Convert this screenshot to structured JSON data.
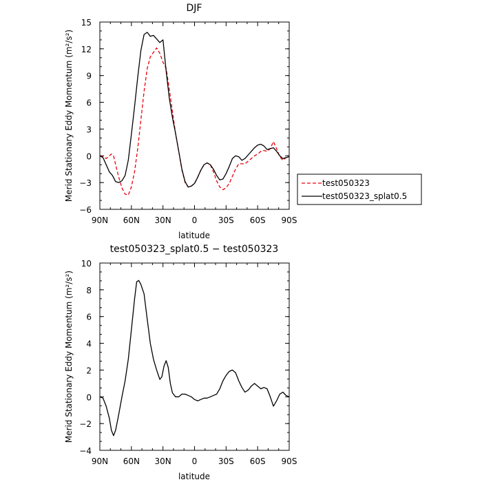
{
  "chart_data": [
    {
      "type": "line",
      "title": "DJF",
      "xlabel": "latitude",
      "ylabel": "Merid Stationary Eddy Momentum (m²/s²)",
      "xlim": [
        90,
        -90
      ],
      "ylim": [
        -6,
        15
      ],
      "x_ticks": [
        90,
        60,
        30,
        0,
        -30,
        -60,
        -90
      ],
      "x_tick_labels": [
        "90N",
        "60N",
        "30N",
        "0",
        "30S",
        "60S",
        "90S"
      ],
      "y_ticks": [
        -6,
        -3,
        0,
        3,
        6,
        9,
        12,
        15
      ],
      "y_tick_labels": [
        "−6",
        "−3",
        "0",
        "3",
        "6",
        "9",
        "12",
        "15"
      ],
      "legend": "right",
      "series": [
        {
          "name": "test050323",
          "color": "#e8000b",
          "dash": "dashed",
          "points": [
            [
              90,
              0
            ],
            [
              87,
              -0.1
            ],
            [
              84,
              -0.3
            ],
            [
              81,
              0
            ],
            [
              79,
              0.2
            ],
            [
              77,
              0
            ],
            [
              75,
              -1
            ],
            [
              72,
              -2.4
            ],
            [
              69,
              -3.6
            ],
            [
              66,
              -4.3
            ],
            [
              63,
              -4.4
            ],
            [
              60,
              -3.5
            ],
            [
              57,
              -1.8
            ],
            [
              54,
              0.8
            ],
            [
              51,
              4
            ],
            [
              48,
              7.2
            ],
            [
              45,
              9.8
            ],
            [
              42,
              11.1
            ],
            [
              39,
              11.6
            ],
            [
              36,
              12.1
            ],
            [
              33,
              11.5
            ],
            [
              30,
              10.5
            ],
            [
              27,
              9.8
            ],
            [
              24,
              7.5
            ],
            [
              21,
              5
            ],
            [
              18,
              2.5
            ],
            [
              15,
              0.5
            ],
            [
              12,
              -1.6
            ],
            [
              9,
              -3
            ],
            [
              6,
              -3.5
            ],
            [
              3,
              -3.4
            ],
            [
              0,
              -3.1
            ],
            [
              -3,
              -2.4
            ],
            [
              -6,
              -1.6
            ],
            [
              -9,
              -1
            ],
            [
              -12,
              -0.8
            ],
            [
              -15,
              -1
            ],
            [
              -18,
              -1.8
            ],
            [
              -21,
              -2.8
            ],
            [
              -24,
              -3.5
            ],
            [
              -27,
              -3.8
            ],
            [
              -30,
              -3.6
            ],
            [
              -33,
              -3.1
            ],
            [
              -36,
              -2.3
            ],
            [
              -39,
              -1.5
            ],
            [
              -42,
              -0.9
            ],
            [
              -45,
              -0.9
            ],
            [
              -48,
              -0.9
            ],
            [
              -51,
              -0.6
            ],
            [
              -54,
              -0.3
            ],
            [
              -57,
              0
            ],
            [
              -60,
              0.2
            ],
            [
              -63,
              0.5
            ],
            [
              -66,
              0.6
            ],
            [
              -69,
              0.5
            ],
            [
              -72,
              0.8
            ],
            [
              -75,
              1.6
            ],
            [
              -78,
              0.8
            ],
            [
              -81,
              -0.1
            ],
            [
              -84,
              -0.5
            ],
            [
              -87,
              -0.2
            ],
            [
              -90,
              -0.2
            ]
          ]
        },
        {
          "name": "test050323_splat0.5",
          "color": "#000000",
          "dash": "solid",
          "points": [
            [
              90,
              0
            ],
            [
              87,
              -0.2
            ],
            [
              84,
              -1
            ],
            [
              81,
              -1.8
            ],
            [
              78,
              -2.2
            ],
            [
              75,
              -2.9
            ],
            [
              72,
              -3
            ],
            [
              69,
              -2.8
            ],
            [
              66,
              -2.2
            ],
            [
              63,
              -0.5
            ],
            [
              60,
              2.4
            ],
            [
              57,
              5.5
            ],
            [
              54,
              8.8
            ],
            [
              51,
              11.8
            ],
            [
              48,
              13.6
            ],
            [
              45,
              13.85
            ],
            [
              42,
              13.4
            ],
            [
              39,
              13.5
            ],
            [
              36,
              13.1
            ],
            [
              33,
              12.7
            ],
            [
              30,
              13
            ],
            [
              27,
              9.5
            ],
            [
              24,
              6.5
            ],
            [
              21,
              4.3
            ],
            [
              18,
              2.5
            ],
            [
              15,
              0.5
            ],
            [
              12,
              -1.5
            ],
            [
              9,
              -2.9
            ],
            [
              6,
              -3.5
            ],
            [
              3,
              -3.4
            ],
            [
              0,
              -3.1
            ],
            [
              -3,
              -2.4
            ],
            [
              -6,
              -1.6
            ],
            [
              -9,
              -1
            ],
            [
              -12,
              -0.8
            ],
            [
              -15,
              -1
            ],
            [
              -18,
              -1.5
            ],
            [
              -21,
              -2.2
            ],
            [
              -24,
              -2.7
            ],
            [
              -27,
              -2.6
            ],
            [
              -30,
              -2
            ],
            [
              -33,
              -1.2
            ],
            [
              -36,
              -0.3
            ],
            [
              -39,
              0
            ],
            [
              -42,
              -0.1
            ],
            [
              -45,
              -0.5
            ],
            [
              -48,
              -0.3
            ],
            [
              -51,
              0.1
            ],
            [
              -54,
              0.5
            ],
            [
              -57,
              0.9
            ],
            [
              -60,
              1.2
            ],
            [
              -63,
              1.3
            ],
            [
              -66,
              1.1
            ],
            [
              -69,
              0.7
            ],
            [
              -72,
              0.8
            ],
            [
              -75,
              0.9
            ],
            [
              -78,
              0.5
            ],
            [
              -81,
              0
            ],
            [
              -84,
              -0.3
            ],
            [
              -87,
              -0.2
            ],
            [
              -90,
              -0.1
            ]
          ]
        }
      ]
    },
    {
      "type": "line",
      "title": "test050323_splat0.5 − test050323",
      "xlabel": "latitude",
      "ylabel": "Merid Stationary Eddy Momentum (m²/s²)",
      "xlim": [
        90,
        -90
      ],
      "ylim": [
        -4,
        10
      ],
      "x_ticks": [
        90,
        60,
        30,
        0,
        -30,
        -60,
        -90
      ],
      "x_tick_labels": [
        "90N",
        "60N",
        "30N",
        "0",
        "30S",
        "60S",
        "90S"
      ],
      "y_ticks": [
        -4,
        -2,
        0,
        2,
        4,
        6,
        8,
        10
      ],
      "y_tick_labels": [
        "−4",
        "−2",
        "0",
        "2",
        "4",
        "6",
        "8",
        "10"
      ],
      "series": [
        {
          "color": "#000000",
          "dash": "solid",
          "points": [
            [
              90,
              0
            ],
            [
              87,
              -0.1
            ],
            [
              84,
              -0.7
            ],
            [
              81,
              -1.6
            ],
            [
              79,
              -2.5
            ],
            [
              77,
              -2.9
            ],
            [
              75,
              -2.5
            ],
            [
              72,
              -1.3
            ],
            [
              69,
              0
            ],
            [
              66,
              1.2
            ],
            [
              63,
              2.8
            ],
            [
              60,
              5
            ],
            [
              57,
              7.3
            ],
            [
              55,
              8.6
            ],
            [
              53,
              8.7
            ],
            [
              51,
              8.4
            ],
            [
              48,
              7.7
            ],
            [
              45,
              5.8
            ],
            [
              42,
              4
            ],
            [
              39,
              2.8
            ],
            [
              36,
              2
            ],
            [
              33,
              1.3
            ],
            [
              31,
              1.5
            ],
            [
              29,
              2.3
            ],
            [
              27,
              2.7
            ],
            [
              25,
              2.2
            ],
            [
              23,
              1
            ],
            [
              21,
              0.3
            ],
            [
              18,
              0
            ],
            [
              15,
              0
            ],
            [
              12,
              0.2
            ],
            [
              9,
              0.2
            ],
            [
              6,
              0.1
            ],
            [
              3,
              0
            ],
            [
              0,
              -0.2
            ],
            [
              -3,
              -0.3
            ],
            [
              -6,
              -0.2
            ],
            [
              -9,
              -0.1
            ],
            [
              -12,
              -0.1
            ],
            [
              -15,
              0
            ],
            [
              -18,
              0.1
            ],
            [
              -21,
              0.2
            ],
            [
              -24,
              0.6
            ],
            [
              -27,
              1.2
            ],
            [
              -30,
              1.6
            ],
            [
              -33,
              1.9
            ],
            [
              -36,
              2
            ],
            [
              -39,
              1.8
            ],
            [
              -42,
              1.2
            ],
            [
              -45,
              0.7
            ],
            [
              -48,
              0.35
            ],
            [
              -51,
              0.5
            ],
            [
              -54,
              0.8
            ],
            [
              -57,
              1
            ],
            [
              -60,
              0.8
            ],
            [
              -63,
              0.6
            ],
            [
              -66,
              0.7
            ],
            [
              -69,
              0.6
            ],
            [
              -72,
              0
            ],
            [
              -75,
              -0.7
            ],
            [
              -78,
              -0.3
            ],
            [
              -81,
              0.2
            ],
            [
              -84,
              0.35
            ],
            [
              -87,
              0.1
            ],
            [
              -90,
              0
            ]
          ]
        }
      ]
    }
  ]
}
